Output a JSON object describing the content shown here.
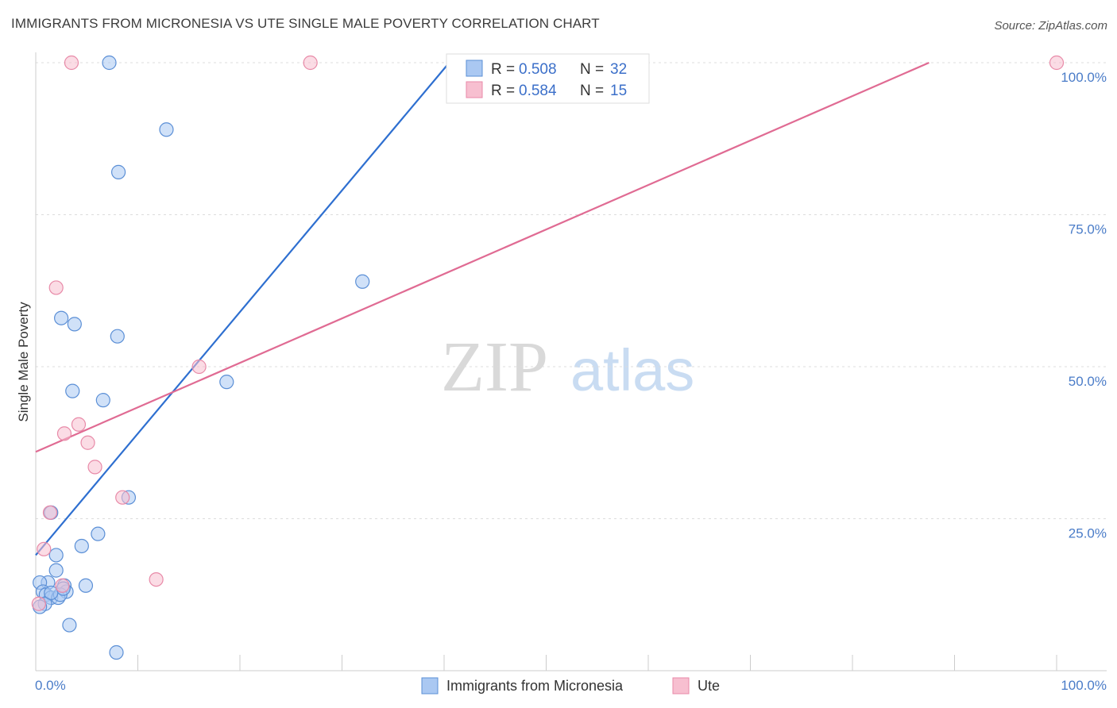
{
  "title": "IMMIGRANTS FROM MICRONESIA VS UTE SINGLE MALE POVERTY CORRELATION CHART",
  "source": "Source: ZipAtlas.com",
  "watermark": {
    "zip": "ZIP",
    "atlas": "atlas"
  },
  "colors": {
    "blue_fill": "#aac8f2",
    "blue_stroke": "#5b8fd6",
    "blue_line": "#2e6fd0",
    "pink_fill": "#f7bfd0",
    "pink_stroke": "#e88aa8",
    "pink_line": "#e06b93",
    "tick": "#4a7cc8",
    "grid": "#dcdcdc"
  },
  "legend": {
    "row1": {
      "r_label": "R = ",
      "r_value": "0.508",
      "n_label": "N = ",
      "n_value": "32"
    },
    "row2": {
      "r_label": "R = ",
      "r_value": "0.584",
      "n_label": "N = ",
      "n_value": "15"
    }
  },
  "chart_data": {
    "type": "scatter",
    "title": "IMMIGRANTS FROM MICRONESIA VS UTE SINGLE MALE POVERTY CORRELATION CHART",
    "xlabel": "",
    "ylabel": "Single Male Poverty",
    "xlim": [
      0,
      100
    ],
    "ylim": [
      0,
      100
    ],
    "x_tick_labels": [
      "0.0%",
      "100.0%"
    ],
    "y_tick_labels": [
      {
        "value": 25,
        "label": "25.0%"
      },
      {
        "value": 50,
        "label": "50.0%"
      },
      {
        "value": 75,
        "label": "75.0%"
      },
      {
        "value": 100,
        "label": "100.0%"
      }
    ],
    "series": [
      {
        "name": "Immigrants from Micronesia",
        "color": "blue",
        "points": [
          [
            7.2,
            100
          ],
          [
            8.1,
            82
          ],
          [
            12.8,
            89
          ],
          [
            32,
            64
          ],
          [
            2.5,
            58
          ],
          [
            3.8,
            57
          ],
          [
            8,
            55
          ],
          [
            3.6,
            46
          ],
          [
            6.6,
            44.5
          ],
          [
            18.7,
            47.5
          ],
          [
            1.5,
            26
          ],
          [
            9.1,
            28.5
          ],
          [
            6.1,
            22.5
          ],
          [
            4.5,
            20.5
          ],
          [
            2,
            19
          ],
          [
            2,
            16.5
          ],
          [
            1.2,
            14.5
          ],
          [
            0.4,
            14.5
          ],
          [
            2.8,
            14
          ],
          [
            3,
            13
          ],
          [
            4.9,
            14
          ],
          [
            0.7,
            13
          ],
          [
            1,
            12.5
          ],
          [
            1.5,
            12
          ],
          [
            2.2,
            12
          ],
          [
            2.4,
            12.5
          ],
          [
            2.7,
            13.5
          ],
          [
            0.9,
            11
          ],
          [
            0.4,
            10.5
          ],
          [
            1.5,
            12.8
          ],
          [
            3.3,
            7.5
          ],
          [
            7.9,
            3
          ]
        ]
      },
      {
        "name": "Ute",
        "color": "pink",
        "points": [
          [
            3.5,
            100
          ],
          [
            26.9,
            100
          ],
          [
            100,
            100
          ],
          [
            2,
            63
          ],
          [
            16,
            50
          ],
          [
            4.2,
            40.5
          ],
          [
            2.8,
            39
          ],
          [
            5.1,
            37.5
          ],
          [
            5.8,
            33.5
          ],
          [
            8.5,
            28.5
          ],
          [
            1.4,
            26
          ],
          [
            0.8,
            20
          ],
          [
            11.8,
            15
          ],
          [
            2.6,
            14
          ],
          [
            0.3,
            11
          ]
        ]
      }
    ],
    "trend_lines": [
      {
        "series": "Immigrants from Micronesia",
        "x": [
          0,
          40.5
        ],
        "y": [
          19,
          100
        ]
      },
      {
        "series": "Ute",
        "x": [
          0,
          87.5
        ],
        "y": [
          36,
          100
        ]
      }
    ],
    "legend_placement": "top-center",
    "grid": true
  }
}
